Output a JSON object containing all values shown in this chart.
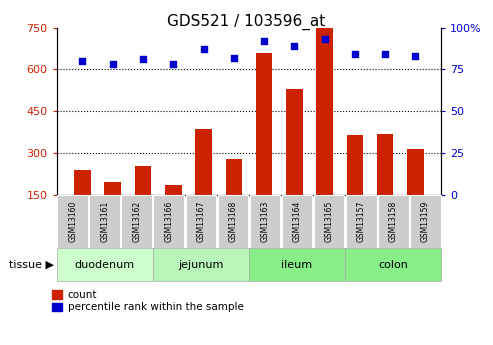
{
  "title": "GDS521 / 103596_at",
  "samples": [
    "GSM13160",
    "GSM13161",
    "GSM13162",
    "GSM13166",
    "GSM13167",
    "GSM13168",
    "GSM13163",
    "GSM13164",
    "GSM13165",
    "GSM13157",
    "GSM13158",
    "GSM13159"
  ],
  "counts": [
    240,
    195,
    255,
    185,
    385,
    280,
    660,
    530,
    750,
    365,
    370,
    315
  ],
  "percentiles": [
    80,
    78,
    81,
    78,
    87,
    82,
    92,
    89,
    93,
    84,
    84,
    83
  ],
  "tissue_labels": [
    "duodenum",
    "jejunum",
    "ileum",
    "colon"
  ],
  "bar_color": "#cc2200",
  "dot_color": "#0000cc",
  "ylim_left": [
    150,
    750
  ],
  "ylim_right": [
    0,
    100
  ],
  "yticks_left": [
    150,
    300,
    450,
    600,
    750
  ],
  "yticks_right": [
    0,
    25,
    50,
    75,
    100
  ],
  "grid_values": [
    300,
    450,
    600
  ],
  "tissue_group_sizes": [
    3,
    3,
    3,
    3
  ],
  "tissue_band_colors": [
    "#ccffcc",
    "#aaffaa",
    "#88ee88",
    "#66dd66"
  ],
  "sample_box_color": "#cccccc",
  "legend_count_label": "count",
  "legend_pct_label": "percentile rank within the sample",
  "tissue_label_text": "tissue ▶"
}
